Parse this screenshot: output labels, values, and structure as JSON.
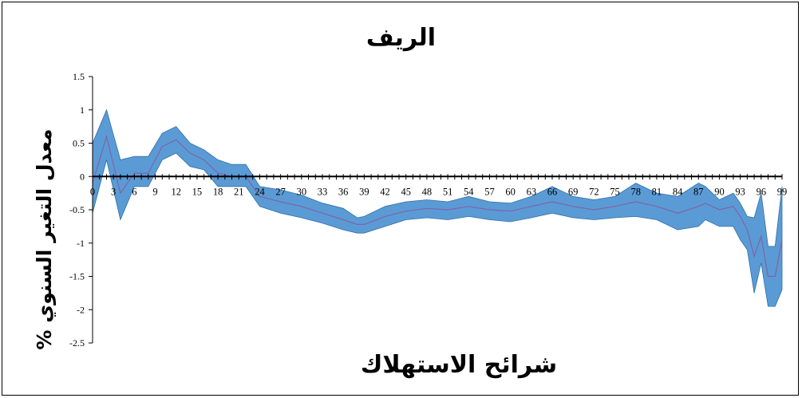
{
  "chart_data": {
    "type": "area",
    "title": "الريف",
    "xlabel": "شرائح الاستهلاك",
    "ylabel": "معدل التغير السنوي %",
    "ylim": [
      -2.5,
      1.5
    ],
    "xlim": [
      0,
      99
    ],
    "yticks": [
      "1.5",
      "1",
      "0.5",
      "0",
      "-0.5",
      "-1",
      "-1.5",
      "-2",
      "-2.5"
    ],
    "xticks": [
      "0",
      "3",
      "6",
      "9",
      "12",
      "15",
      "18",
      "21",
      "24",
      "27",
      "30",
      "33",
      "36",
      "39",
      "42",
      "45",
      "48",
      "51",
      "54",
      "57",
      "60",
      "63",
      "66",
      "69",
      "72",
      "75",
      "78",
      "81",
      "84",
      "87",
      "90",
      "93",
      "96",
      "99"
    ],
    "grid": false,
    "legend": "none",
    "band_color": "#5B9BD5",
    "band_edge_color": "#2E6FA8",
    "line_color": "#7F63A8",
    "x": [
      0,
      2,
      4,
      6,
      8,
      10,
      12,
      14,
      16,
      18,
      20,
      22,
      24,
      27,
      30,
      33,
      36,
      38,
      39,
      42,
      45,
      48,
      51,
      54,
      57,
      60,
      63,
      66,
      69,
      72,
      75,
      78,
      81,
      84,
      87,
      88,
      90,
      92,
      93,
      94,
      95,
      96,
      97,
      98,
      99
    ],
    "mean": [
      -0.1,
      0.6,
      -0.25,
      0.05,
      0.05,
      0.45,
      0.55,
      0.35,
      0.25,
      0.05,
      0.0,
      0.0,
      -0.3,
      -0.38,
      -0.45,
      -0.55,
      -0.65,
      -0.72,
      -0.72,
      -0.6,
      -0.52,
      -0.48,
      -0.5,
      -0.45,
      -0.5,
      -0.52,
      -0.45,
      -0.38,
      -0.45,
      -0.5,
      -0.45,
      -0.38,
      -0.45,
      -0.55,
      -0.45,
      -0.4,
      -0.5,
      -0.45,
      -0.6,
      -0.8,
      -1.2,
      -0.9,
      -1.5,
      -1.5,
      -0.95
    ],
    "upper": [
      0.5,
      1.0,
      0.25,
      0.3,
      0.3,
      0.65,
      0.75,
      0.5,
      0.4,
      0.25,
      0.18,
      0.18,
      -0.15,
      -0.2,
      -0.28,
      -0.4,
      -0.48,
      -0.62,
      -0.6,
      -0.45,
      -0.38,
      -0.35,
      -0.38,
      -0.3,
      -0.38,
      -0.4,
      -0.3,
      -0.15,
      -0.3,
      -0.35,
      -0.3,
      -0.1,
      -0.25,
      -0.3,
      -0.1,
      -0.15,
      -0.35,
      -0.25,
      -0.4,
      -0.6,
      -0.62,
      -0.25,
      -1.05,
      -1.05,
      -0.15
    ],
    "lower": [
      -0.55,
      0.25,
      -0.65,
      -0.15,
      -0.15,
      0.25,
      0.35,
      0.15,
      0.1,
      -0.15,
      -0.15,
      -0.15,
      -0.45,
      -0.55,
      -0.62,
      -0.7,
      -0.8,
      -0.85,
      -0.85,
      -0.75,
      -0.65,
      -0.62,
      -0.65,
      -0.6,
      -0.65,
      -0.68,
      -0.62,
      -0.55,
      -0.62,
      -0.65,
      -0.62,
      -0.6,
      -0.65,
      -0.8,
      -0.75,
      -0.65,
      -0.75,
      -0.75,
      -0.95,
      -1.1,
      -1.75,
      -1.3,
      -1.95,
      -1.95,
      -1.7
    ]
  }
}
